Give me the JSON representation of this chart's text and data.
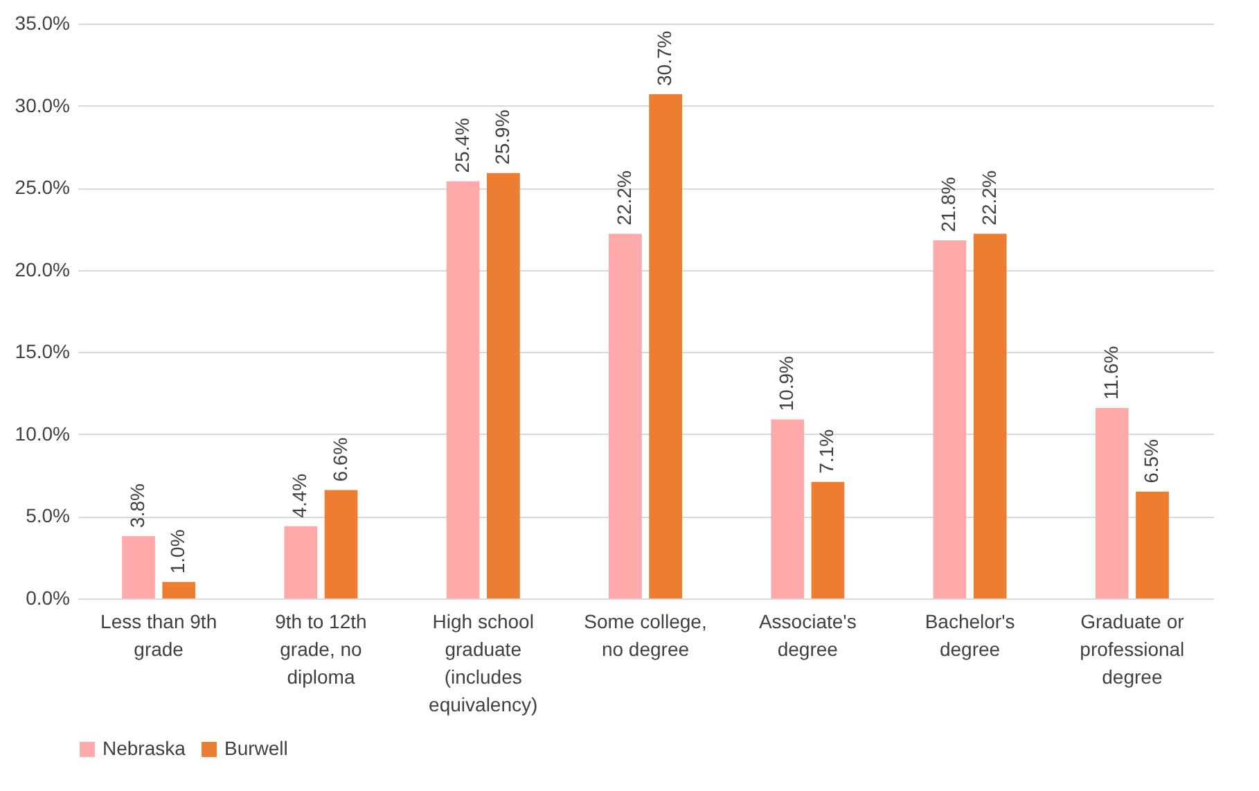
{
  "chart_data": {
    "type": "bar",
    "categories": [
      "Less than 9th grade",
      "9th to 12th grade, no diploma",
      "High school graduate (includes equivalency)",
      "Some college, no degree",
      "Associate's degree",
      "Bachelor's degree",
      "Graduate or professional degree"
    ],
    "series": [
      {
        "name": "Nebraska",
        "color": "#ffaaaa",
        "values": [
          3.8,
          4.4,
          25.4,
          22.2,
          10.9,
          21.8,
          11.6
        ],
        "value_labels": [
          "3.8%",
          "4.4%",
          "25.4%",
          "22.2%",
          "10.9%",
          "21.8%",
          "11.6%"
        ]
      },
      {
        "name": "Burwell",
        "color": "#ed7d31",
        "values": [
          1.0,
          6.6,
          25.9,
          30.7,
          7.1,
          22.2,
          6.5
        ],
        "value_labels": [
          "1.0%",
          "6.6%",
          "25.9%",
          "30.7%",
          "7.1%",
          "22.2%",
          "6.5%"
        ]
      }
    ],
    "ylim": [
      0,
      35
    ],
    "yticks": [
      {
        "value": 0,
        "label": "0.0%"
      },
      {
        "value": 5,
        "label": "5.0%"
      },
      {
        "value": 10,
        "label": "10.0%"
      },
      {
        "value": 15,
        "label": "15.0%"
      },
      {
        "value": 20,
        "label": "20.0%"
      },
      {
        "value": 25,
        "label": "25.0%"
      },
      {
        "value": 30,
        "label": "30.0%"
      },
      {
        "value": 35,
        "label": "35.0%"
      }
    ],
    "grid": "y",
    "legend": "bottom"
  }
}
